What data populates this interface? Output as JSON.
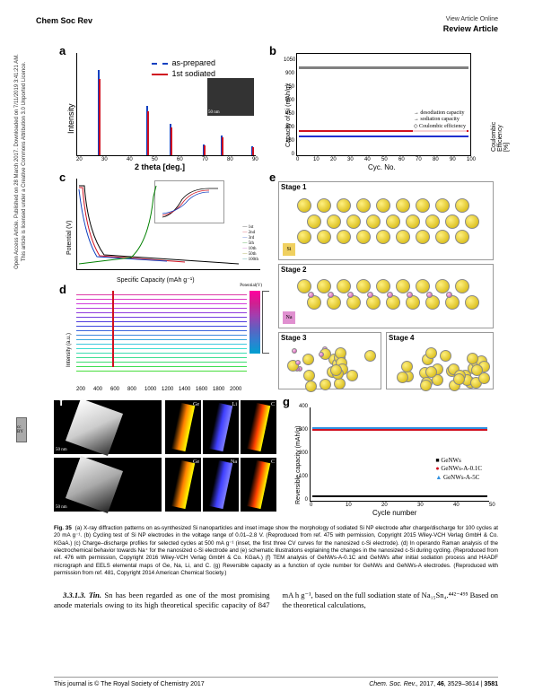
{
  "header": {
    "journal": "Chem Soc Rev",
    "view_online": "View Article Online",
    "article_type": "Review Article"
  },
  "sidebar": {
    "access_text": "Open Access Article. Published on 28 March 2017. Downloaded on 7/11/2019 3:41:21 AM.",
    "license_text": "This article is licensed under a Creative Commons Attribution 3.0 Unported Licence.",
    "cc_label": "cc BY"
  },
  "figure": {
    "label": "Fig. 35",
    "panels": {
      "a": {
        "label": "a",
        "legend_prepared": "as-prepared",
        "legend_sodiated": "1st sodiated",
        "xlabel": "2 theta [deg.]",
        "ylabel": "Intensity",
        "x_ticks": [
          "20",
          "30",
          "40",
          "50",
          "60",
          "70",
          "80",
          "90"
        ],
        "inset_scale": "50 nm",
        "peak_positions": [
          28,
          47,
          56,
          69,
          76,
          88
        ],
        "peak_heights": [
          95,
          55,
          35,
          12,
          22,
          10
        ],
        "color_prepared": "#1040c0",
        "color_sodiated": "#d01020"
      },
      "b": {
        "label": "b",
        "ylabel_left": "Capacity of Si (mAh/g)",
        "ylabel_right": "Coulombic Efficiency [%]",
        "xlabel": "Cyc. No.",
        "x_ticks": [
          "0",
          "10",
          "20",
          "30",
          "40",
          "50",
          "60",
          "70",
          "80",
          "90",
          "100"
        ],
        "y_ticks": [
          "0",
          "150",
          "300",
          "450",
          "600",
          "750",
          "900",
          "1050"
        ],
        "legend_desod": "desodiation capacity",
        "legend_sod": "sodiation capacity",
        "legend_ce": "Coulombic efficiency",
        "color_desod": "#2030d0",
        "color_sod": "#d01020",
        "color_ce": "#808080",
        "desod_y": 220,
        "sod_y": 250,
        "ce_y": 900
      },
      "c": {
        "label": "c",
        "ylabel": "Potential (V)",
        "xlabel": "Specific Capacity (mAh g⁻¹)",
        "x_ticks": [
          "0",
          "100",
          "200",
          "300",
          "400",
          "500",
          "600",
          "700",
          "800"
        ],
        "y_ticks": [
          "0.0",
          "0.5",
          "1.0",
          "1.5",
          "2.0",
          "2.5",
          "3.0",
          "3.5"
        ],
        "legend_items": [
          "1st",
          "2nd",
          "3rd",
          "5th",
          "10th",
          "50th",
          "100th"
        ],
        "colors": [
          "#000000",
          "#d01020",
          "#1040c0",
          "#008000",
          "#c040c0",
          "#808000",
          "#008080"
        ],
        "inset_legend": [
          "First",
          "Second",
          "Third"
        ],
        "inset_xlabel": "Potential (V)"
      },
      "d": {
        "label": "d",
        "ylabel": "Intensity (a.u.)",
        "xlabel": "",
        "x_ticks": [
          "200",
          "400",
          "600",
          "800",
          "1000",
          "1200",
          "1400",
          "1600",
          "1800",
          "2000"
        ],
        "colorbar_label": "Potential(V)",
        "line_count": 18
      },
      "e": {
        "label": "e",
        "stage1": "Stage 1",
        "stage2": "Stage 2",
        "stage3": "Stage 3",
        "stage4": "Stage 4",
        "si_label": "Si",
        "na_label": "Na",
        "atom_color_si": "#d0b000",
        "atom_color_na": "#c040a0"
      },
      "f": {
        "label": "f",
        "scale": "50 nm",
        "elements_top": [
          "Ge",
          "Li",
          "C"
        ],
        "elements_bottom": [
          "Ge",
          "Na",
          "C"
        ]
      },
      "g": {
        "label": "g",
        "ylabel": "Reversible capacity (mAh/g)",
        "xlabel": "Cycle number",
        "x_ticks": [
          "0",
          "10",
          "20",
          "30",
          "40",
          "50"
        ],
        "y_ticks": [
          "0",
          "100",
          "200",
          "300",
          "400"
        ],
        "legend": [
          "GeNWs",
          "GeNWs-A-0.1C",
          "GeNWs-A-5C"
        ],
        "colors": [
          "#000000",
          "#d01020",
          "#3090e0"
        ],
        "genws_y": 15,
        "genws_a01c_y": 305,
        "genws_a5c_y": 300
      }
    },
    "caption": "(a) X-ray diffraction patterns on as-synthesized Si nanoparticles and inset image show the morphology of sodiated Si NP electrode after charge/discharge for 100 cycles at 20 mA g⁻¹. (b) Cycling test of Si NP electrodes in the voltage range of 0.01–2.8 V. (Reproduced from ref. 475 with permission, Copyright 2015 Wiley-VCH Verlag GmbH & Co. KGaA.) (c) Charge–discharge profiles for selected cycles at 500 mA g⁻¹ (inset, the first three CV curves for the nanosized c-Si electrode). (d) In operando Raman analysis of the electrochemical behavior towards Na⁺ for the nanosized c-Si electrode and (e) schematic illustrations explaining the changes in the nanosized c-Si during cycling. (Reproduced from ref. 476 with permission, Copyright 2016 Wiley-VCH Verlag GmbH & Co. KGaA.) (f) TEM analysis of GeNWs-A-0.1C and GeNWs after initial sodiation process and HAADF micrograph and EELS elemental maps of Ge, Na, Li, and C. (g) Reversible capacity as a function of cycle number for GeNWs and GeNWs-A electrodes. (Reproduced with permission from ref. 481, Copyright 2014 American Chemical Society.)"
  },
  "body": {
    "section": "3.3.1.3. Tin.",
    "text": "Sn has been regarded as one of the most promising anode materials owing to its high theoretical specific capacity of 847 mA h g⁻¹, based on the full sodiation state of Na₁₅Sn₄.⁴⁴²⁻⁴⁹⁵ Based on the theoretical calculations,"
  },
  "footer": {
    "left": "This journal is © The Royal Society of Chemistry 2017",
    "right_journal": "Chem. Soc. Rev.,",
    "right_year": " 2017, ",
    "right_vol": "46",
    "right_pages": ", 3529–3614 | ",
    "right_page": "3581"
  }
}
